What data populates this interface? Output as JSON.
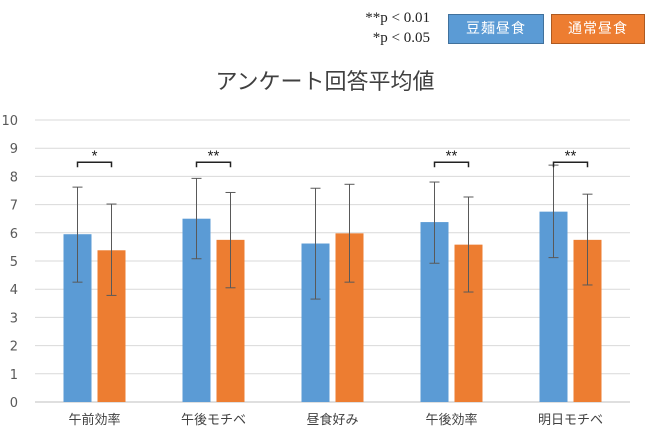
{
  "chart_data": {
    "type": "bar",
    "title": "アンケート回答平均値",
    "categories": [
      "午前効率",
      "午後モチベ",
      "昼食好み",
      "午後効率",
      "明日モチベ"
    ],
    "series": [
      {
        "name": "豆麺昼食",
        "color": "#5b9bd5",
        "values": [
          5.95,
          6.5,
          5.62,
          6.38,
          6.75
        ],
        "error_low": [
          4.25,
          5.08,
          3.65,
          4.92,
          5.12
        ],
        "error_high": [
          7.62,
          7.93,
          7.58,
          7.8,
          8.4
        ]
      },
      {
        "name": "通常昼食",
        "color": "#ed7d31",
        "values": [
          5.38,
          5.75,
          5.98,
          5.58,
          5.75
        ],
        "error_low": [
          3.78,
          4.05,
          4.25,
          3.9,
          4.15
        ],
        "error_high": [
          7.02,
          7.43,
          7.72,
          7.27,
          7.37
        ]
      }
    ],
    "yticks": [
      0,
      1,
      2,
      3,
      4,
      5,
      6,
      7,
      8,
      9,
      10
    ],
    "ylim": [
      0,
      10
    ],
    "xlabel": "",
    "ylabel": "",
    "grid": true,
    "significance": [
      {
        "category_index": 0,
        "label": "*",
        "level": 8.5
      },
      {
        "category_index": 1,
        "label": "**",
        "level": 8.5
      },
      {
        "category_index": 3,
        "label": "**",
        "level": 8.5
      },
      {
        "category_index": 4,
        "label": "**",
        "level": 8.5
      }
    ]
  },
  "significance_note": {
    "line1": "**p < 0.01",
    "line2": "*p < 0.05"
  }
}
